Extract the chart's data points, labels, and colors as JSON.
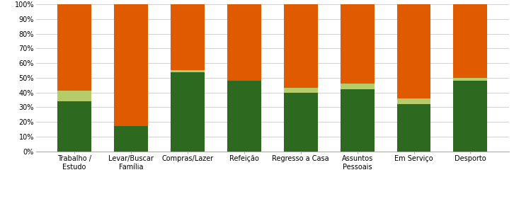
{
  "categories": [
    "Trabalho /\nEstudo",
    "Levar/Buscar\nFamília",
    "Compras/Lazer",
    "Refeição",
    "Regresso a Casa",
    "Assuntos\nPessoais",
    "Em Serviço",
    "Desporto"
  ],
  "modos_activos": [
    34,
    17,
    54,
    48,
    40,
    42,
    32,
    48
  ],
  "transportes_publicos": [
    7,
    0,
    1,
    0,
    3,
    4,
    4,
    2
  ],
  "veiculos_motorizados": [
    59,
    83,
    45,
    52,
    57,
    54,
    64,
    50
  ],
  "color_modos": "#2d6a1f",
  "color_transportes": "#b5cc6a",
  "color_veiculos": "#e05a00",
  "bar_width": 0.6,
  "ylim": [
    0,
    100
  ],
  "ytick_labels": [
    "0%",
    "10%",
    "20%",
    "30%",
    "40%",
    "50%",
    "60%",
    "70%",
    "80%",
    "90%",
    "100%"
  ],
  "ytick_vals": [
    0,
    10,
    20,
    30,
    40,
    50,
    60,
    70,
    80,
    90,
    100
  ],
  "background_color": "#ffffff",
  "grid_color": "#d0d0d0",
  "label_fontsize": 7.0,
  "legend_fontsize": 7.5,
  "tick_fontsize": 7.0
}
